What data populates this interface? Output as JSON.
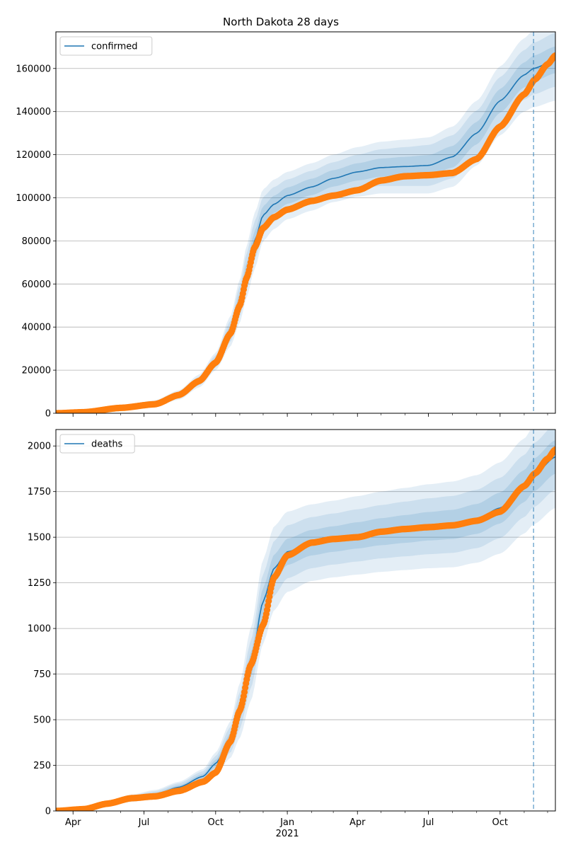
{
  "figure_title": "North Dakota 28 days",
  "colors": {
    "model_line": "#1f77b4",
    "observed": "#ff7f0e",
    "band": "#1f77b4",
    "grid": "#b0b0b0",
    "forecast_marker": "#1f77b4"
  },
  "chart_data": [
    {
      "type": "line",
      "panel": "top",
      "title": "North Dakota 28 days",
      "legend": [
        "confirmed"
      ],
      "legend_placement": "upper-left",
      "grid": "horizontal",
      "xlim": [
        "2020-03-10",
        "2021-12-11"
      ],
      "ylim": [
        0,
        177000
      ],
      "yticks": [
        0,
        20000,
        40000,
        60000,
        80000,
        100000,
        120000,
        140000,
        160000
      ],
      "xtick_labels": [
        {
          "date": "2020-04-01",
          "label": "Apr"
        },
        {
          "date": "2020-07-01",
          "label": "Jul"
        },
        {
          "date": "2020-10-01",
          "label": "Oct"
        },
        {
          "date": "2021-01-01",
          "label": "Jan"
        },
        {
          "date": "2021-04-01",
          "label": "Apr"
        },
        {
          "date": "2021-07-01",
          "label": "Jul"
        },
        {
          "date": "2021-10-01",
          "label": "Oct"
        }
      ],
      "xtick_sublabels": [],
      "forecast_start": "2021-11-13",
      "model": {
        "name": "confirmed",
        "dates": [
          "2020-03-10",
          "2020-04-15",
          "2020-06-01",
          "2020-07-15",
          "2020-08-15",
          "2020-09-10",
          "2020-10-01",
          "2020-10-20",
          "2020-11-01",
          "2020-11-10",
          "2020-11-20",
          "2020-12-01",
          "2020-12-15",
          "2021-01-01",
          "2021-02-01",
          "2021-03-01",
          "2021-04-01",
          "2021-05-01",
          "2021-06-01",
          "2021-07-01",
          "2021-08-01",
          "2021-09-01",
          "2021-10-01",
          "2021-11-01",
          "2021-11-13",
          "2021-12-11"
        ],
        "values": [
          0,
          500,
          2500,
          4500,
          8500,
          15000,
          24000,
          38000,
          52000,
          66000,
          80000,
          92000,
          97000,
          101000,
          105000,
          109000,
          112000,
          114000,
          114500,
          115000,
          119000,
          130000,
          145000,
          157000,
          160000,
          164000
        ],
        "bands": [
          {
            "level": "outer",
            "offsets": [
              0,
              300,
              1000,
              1500,
              2200,
              3000,
              4000,
              7000,
              10000,
              12000,
              13000,
              12000,
              11500,
              11000,
              11000,
              11000,
              11500,
              12000,
              12500,
              13000,
              14000,
              15000,
              16000,
              17000,
              18000,
              19000
            ]
          },
          {
            "level": "middle",
            "offsets": [
              0,
              200,
              600,
              1000,
              1500,
              2000,
              2800,
              4800,
              7000,
              8500,
              9000,
              8500,
              8000,
              7500,
              7500,
              7500,
              8000,
              8500,
              9000,
              9500,
              10000,
              10500,
              11000,
              11500,
              12000,
              12500
            ]
          },
          {
            "level": "inner",
            "offsets": [
              0,
              100,
              300,
              500,
              700,
              1000,
              1400,
              2400,
              3500,
              4200,
              4500,
              4200,
              4000,
              3800,
              3800,
              3800,
              4000,
              4200,
              4500,
              4800,
              5000,
              5200,
              5500,
              5800,
              6000,
              6200
            ]
          }
        ]
      },
      "observed": {
        "dates": [
          "2020-03-10",
          "2020-04-15",
          "2020-06-01",
          "2020-07-15",
          "2020-08-15",
          "2020-09-10",
          "2020-10-01",
          "2020-10-20",
          "2020-11-01",
          "2020-11-10",
          "2020-11-20",
          "2020-12-01",
          "2020-12-15",
          "2021-01-01",
          "2021-02-01",
          "2021-03-01",
          "2021-04-01",
          "2021-05-01",
          "2021-06-01",
          "2021-07-01",
          "2021-08-01",
          "2021-09-01",
          "2021-10-01",
          "2021-11-01",
          "2021-11-15",
          "2021-12-01",
          "2021-12-11"
        ],
        "values": [
          0,
          500,
          2500,
          4200,
          8500,
          15000,
          23500,
          37000,
          50000,
          63000,
          77000,
          86000,
          91000,
          94500,
          98500,
          101000,
          103500,
          108000,
          110000,
          110500,
          111500,
          118000,
          133000,
          148000,
          155000,
          162000,
          166000
        ]
      }
    },
    {
      "type": "line",
      "panel": "bottom",
      "title": "",
      "legend": [
        "deaths"
      ],
      "legend_placement": "upper-left",
      "grid": "horizontal",
      "xlim": [
        "2020-03-10",
        "2021-12-11"
      ],
      "ylim": [
        0,
        2090
      ],
      "yticks": [
        0,
        250,
        500,
        750,
        1000,
        1250,
        1500,
        1750,
        2000
      ],
      "xtick_labels": [
        {
          "date": "2020-04-01",
          "label": "Apr"
        },
        {
          "date": "2020-07-01",
          "label": "Jul"
        },
        {
          "date": "2020-10-01",
          "label": "Oct"
        },
        {
          "date": "2021-01-01",
          "label": "Jan"
        },
        {
          "date": "2021-04-01",
          "label": "Apr"
        },
        {
          "date": "2021-07-01",
          "label": "Jul"
        },
        {
          "date": "2021-10-01",
          "label": "Oct"
        }
      ],
      "xtick_sublabels": [
        {
          "date": "2021-01-01",
          "label": "2021"
        }
      ],
      "forecast_start": "2021-11-13",
      "model": {
        "name": "deaths",
        "dates": [
          "2020-03-10",
          "2020-04-15",
          "2020-05-15",
          "2020-06-15",
          "2020-07-15",
          "2020-08-15",
          "2020-09-15",
          "2020-10-01",
          "2020-10-20",
          "2020-11-01",
          "2020-11-15",
          "2020-12-01",
          "2020-12-15",
          "2021-01-01",
          "2021-02-01",
          "2021-03-01",
          "2021-04-01",
          "2021-05-01",
          "2021-06-01",
          "2021-07-01",
          "2021-08-01",
          "2021-09-01",
          "2021-10-01",
          "2021-11-01",
          "2021-11-13",
          "2021-12-11"
        ],
        "values": [
          0,
          10,
          40,
          70,
          90,
          130,
          190,
          260,
          390,
          550,
          800,
          1150,
          1330,
          1420,
          1470,
          1490,
          1510,
          1530,
          1545,
          1560,
          1570,
          1600,
          1660,
          1780,
          1840,
          1940
        ],
        "bands": [
          {
            "level": "outer",
            "offsets": [
              0,
              5,
              15,
              20,
              25,
              30,
              40,
              60,
              100,
              150,
              200,
              230,
              230,
              220,
              210,
              210,
              215,
              220,
              225,
              230,
              235,
              240,
              250,
              260,
              270,
              280
            ]
          },
          {
            "level": "middle",
            "offsets": [
              0,
              3,
              10,
              14,
              18,
              22,
              28,
              40,
              70,
              100,
              130,
              150,
              150,
              145,
              140,
              140,
              143,
              146,
              150,
              153,
              156,
              160,
              165,
              170,
              175,
              180
            ]
          },
          {
            "level": "inner",
            "offsets": [
              0,
              2,
              5,
              7,
              9,
              11,
              14,
              20,
              35,
              50,
              65,
              75,
              75,
              72,
              70,
              70,
              72,
              74,
              76,
              78,
              80,
              82,
              85,
              88,
              90,
              92
            ]
          }
        ]
      },
      "observed": {
        "dates": [
          "2020-03-10",
          "2020-04-15",
          "2020-05-15",
          "2020-06-15",
          "2020-07-15",
          "2020-08-15",
          "2020-09-15",
          "2020-10-01",
          "2020-10-20",
          "2020-11-01",
          "2020-11-15",
          "2020-12-01",
          "2020-12-15",
          "2021-01-01",
          "2021-02-01",
          "2021-03-01",
          "2021-04-01",
          "2021-05-01",
          "2021-06-01",
          "2021-07-01",
          "2021-08-01",
          "2021-09-01",
          "2021-10-01",
          "2021-11-01",
          "2021-11-15",
          "2021-12-01",
          "2021-12-11"
        ],
        "values": [
          0,
          10,
          40,
          70,
          80,
          110,
          160,
          210,
          380,
          550,
          800,
          1020,
          1280,
          1400,
          1470,
          1490,
          1500,
          1530,
          1545,
          1555,
          1565,
          1590,
          1640,
          1780,
          1850,
          1930,
          1980
        ]
      }
    }
  ]
}
